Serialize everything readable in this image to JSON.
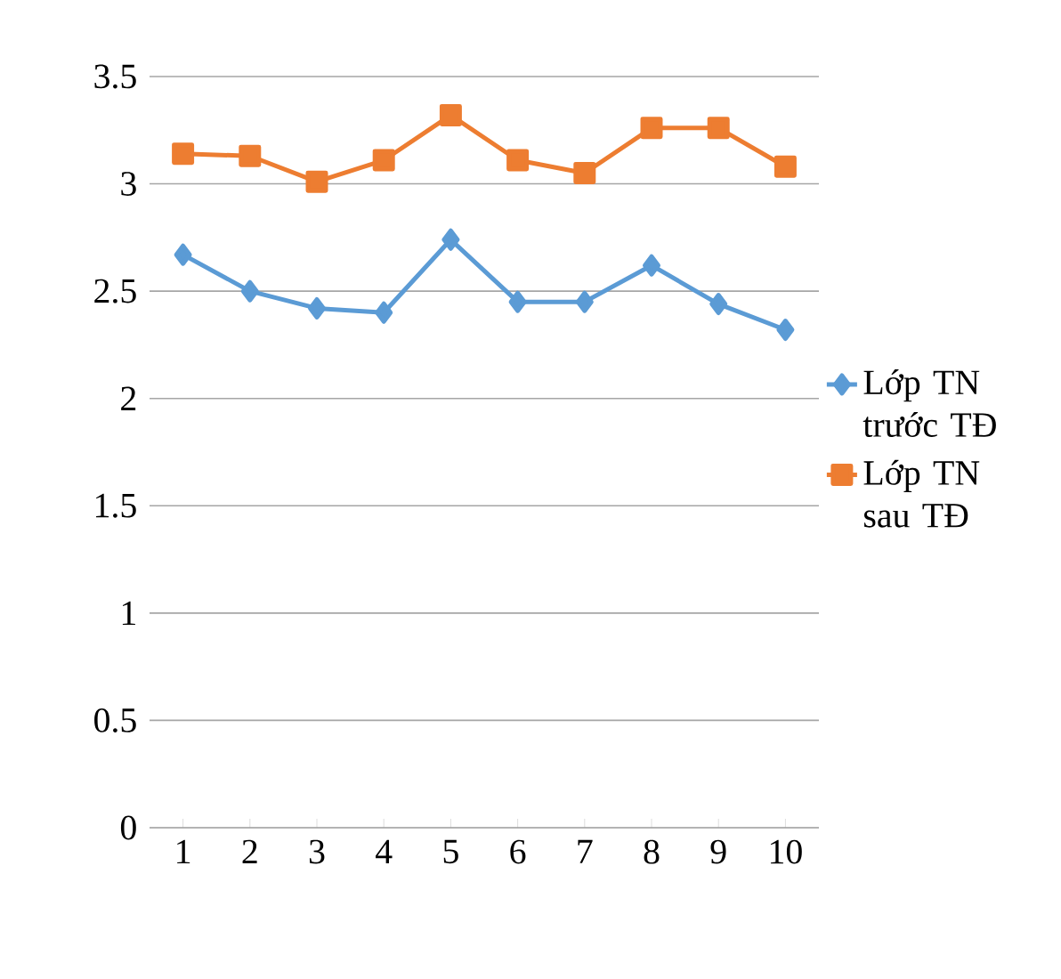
{
  "chart_data": {
    "type": "line",
    "categories": [
      "1",
      "2",
      "3",
      "4",
      "5",
      "6",
      "7",
      "8",
      "9",
      "10"
    ],
    "series": [
      {
        "name": "Lớp TN trước TĐ",
        "color": "#5b9bd5",
        "marker": "diamond",
        "values": [
          2.67,
          2.5,
          2.42,
          2.4,
          2.74,
          2.45,
          2.45,
          2.62,
          2.44,
          2.32
        ]
      },
      {
        "name": "Lớp TN sau TĐ",
        "color": "#ed7d31",
        "marker": "square",
        "values": [
          3.14,
          3.13,
          3.01,
          3.11,
          3.32,
          3.11,
          3.05,
          3.26,
          3.26,
          3.08
        ]
      }
    ],
    "ylim": [
      0,
      3.5
    ],
    "yticks": [
      0,
      0.5,
      1,
      1.5,
      2,
      2.5,
      3,
      3.5
    ],
    "grid": "y",
    "legend": "right",
    "line_style": "solid"
  }
}
